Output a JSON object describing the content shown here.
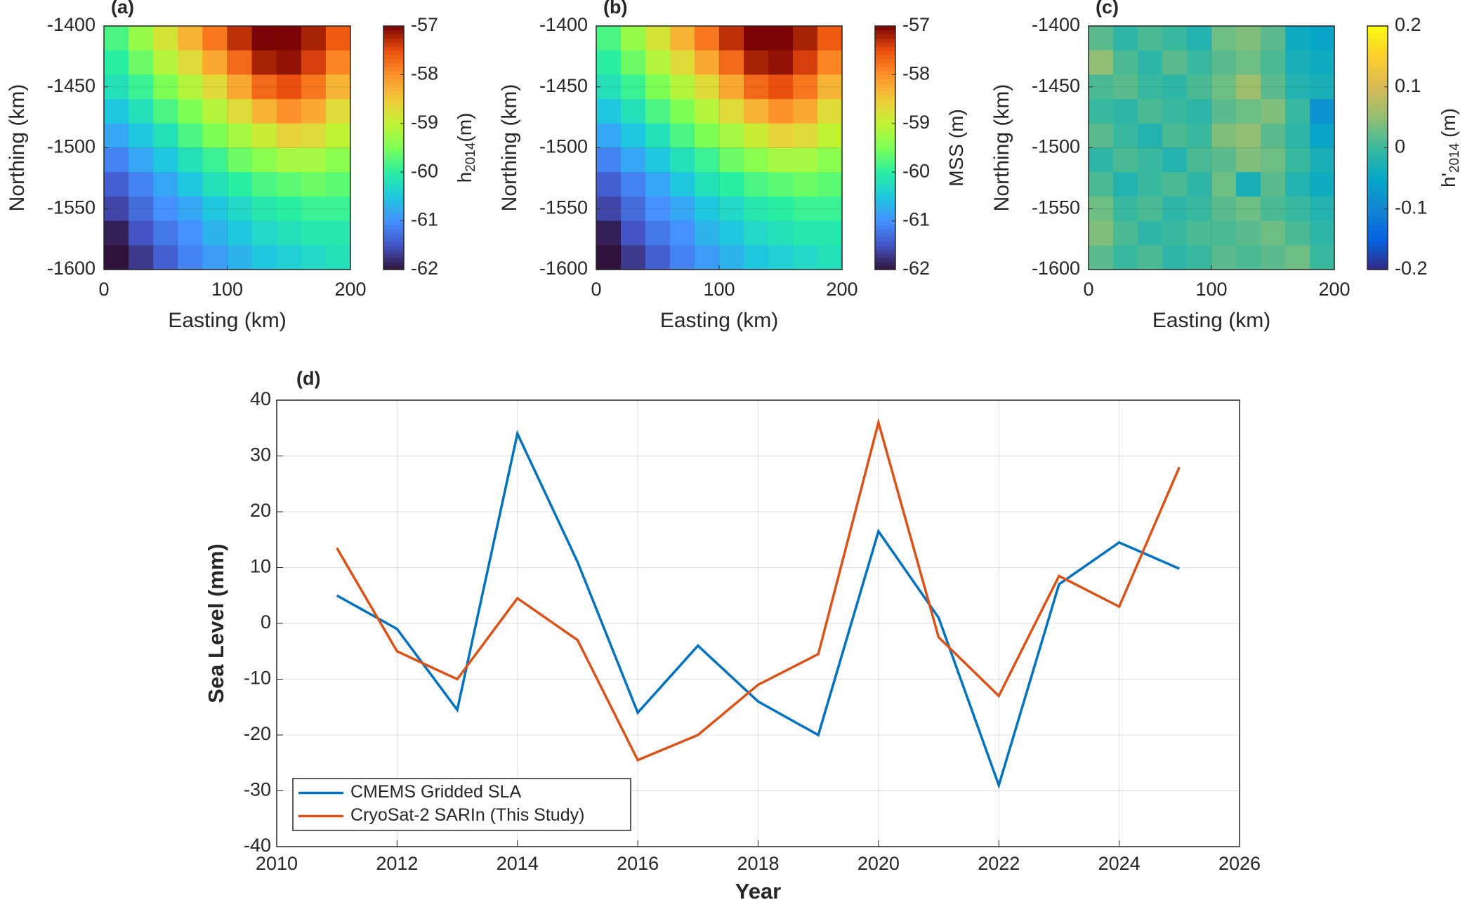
{
  "chart_data": [
    {
      "type": "heatmap",
      "label": "(a)",
      "xlabel": "Easting (km)",
      "ylabel": "Northing (km)",
      "xlim": [
        0,
        200
      ],
      "ylim": [
        -1600,
        -1400
      ],
      "xticks": [
        0,
        100,
        200
      ],
      "yticks": [
        -1600,
        -1550,
        -1500,
        -1450,
        -1400
      ],
      "grid": true,
      "colormap": "turbo",
      "clim": [
        -62,
        -57
      ],
      "cticks": [
        -62,
        -61,
        -60,
        -59,
        -58,
        -57
      ],
      "colorbar_label_parts": [
        "h",
        "2014",
        "(m)"
      ],
      "values": [
        [
          -59.8,
          -59.3,
          -58.8,
          -58.3,
          -57.8,
          -57.3,
          -57.0,
          -57.0,
          -57.2,
          -57.6
        ],
        [
          -60.0,
          -59.6,
          -59.1,
          -58.7,
          -58.2,
          -57.7,
          -57.2,
          -57.1,
          -57.4,
          -57.9
        ],
        [
          -60.2,
          -59.9,
          -59.5,
          -59.1,
          -58.7,
          -58.2,
          -57.7,
          -57.5,
          -57.8,
          -58.3
        ],
        [
          -60.5,
          -60.2,
          -59.8,
          -59.5,
          -59.1,
          -58.7,
          -58.3,
          -58.0,
          -58.2,
          -58.7
        ],
        [
          -60.8,
          -60.5,
          -60.2,
          -59.8,
          -59.5,
          -59.2,
          -58.9,
          -58.6,
          -58.7,
          -59.0
        ],
        [
          -61.1,
          -60.8,
          -60.5,
          -60.2,
          -59.9,
          -59.6,
          -59.4,
          -59.2,
          -59.2,
          -59.4
        ],
        [
          -61.4,
          -61.1,
          -60.8,
          -60.5,
          -60.2,
          -60.0,
          -59.8,
          -59.7,
          -59.6,
          -59.7
        ],
        [
          -61.6,
          -61.3,
          -61.0,
          -60.8,
          -60.5,
          -60.3,
          -60.1,
          -60.0,
          -59.9,
          -59.9
        ],
        [
          -61.9,
          -61.5,
          -61.2,
          -61.0,
          -60.7,
          -60.5,
          -60.3,
          -60.2,
          -60.1,
          -60.1
        ],
        [
          -62.0,
          -61.7,
          -61.4,
          -61.1,
          -60.9,
          -60.7,
          -60.5,
          -60.4,
          -60.3,
          -60.2
        ]
      ]
    },
    {
      "type": "heatmap",
      "label": "(b)",
      "xlabel": "Easting (km)",
      "ylabel": "Northing (km)",
      "xlim": [
        0,
        200
      ],
      "ylim": [
        -1600,
        -1400
      ],
      "xticks": [
        0,
        100,
        200
      ],
      "yticks": [
        -1600,
        -1550,
        -1500,
        -1450,
        -1400
      ],
      "grid": true,
      "colormap": "turbo",
      "clim": [
        -62,
        -57
      ],
      "cticks": [
        -62,
        -61,
        -60,
        -59,
        -58,
        -57
      ],
      "colorbar_label_parts": [
        "MSS (m)"
      ],
      "values": [
        [
          -59.8,
          -59.3,
          -58.8,
          -58.3,
          -57.8,
          -57.3,
          -57.0,
          -57.0,
          -57.2,
          -57.6
        ],
        [
          -60.0,
          -59.6,
          -59.1,
          -58.7,
          -58.2,
          -57.7,
          -57.2,
          -57.1,
          -57.4,
          -57.9
        ],
        [
          -60.2,
          -59.9,
          -59.5,
          -59.1,
          -58.7,
          -58.2,
          -57.7,
          -57.5,
          -57.8,
          -58.3
        ],
        [
          -60.5,
          -60.2,
          -59.8,
          -59.5,
          -59.1,
          -58.7,
          -58.3,
          -58.0,
          -58.2,
          -58.7
        ],
        [
          -60.8,
          -60.5,
          -60.2,
          -59.8,
          -59.5,
          -59.2,
          -58.9,
          -58.6,
          -58.7,
          -59.0
        ],
        [
          -61.1,
          -60.8,
          -60.5,
          -60.2,
          -59.9,
          -59.6,
          -59.4,
          -59.2,
          -59.2,
          -59.4
        ],
        [
          -61.4,
          -61.1,
          -60.8,
          -60.5,
          -60.2,
          -60.0,
          -59.8,
          -59.7,
          -59.6,
          -59.7
        ],
        [
          -61.6,
          -61.3,
          -61.0,
          -60.8,
          -60.5,
          -60.3,
          -60.1,
          -60.0,
          -59.9,
          -59.9
        ],
        [
          -61.9,
          -61.5,
          -61.2,
          -61.0,
          -60.7,
          -60.5,
          -60.3,
          -60.2,
          -60.1,
          -60.1
        ],
        [
          -62.0,
          -61.7,
          -61.4,
          -61.1,
          -60.9,
          -60.7,
          -60.5,
          -60.4,
          -60.3,
          -60.2
        ]
      ]
    },
    {
      "type": "heatmap",
      "label": "(c)",
      "xlabel": "Easting (km)",
      "ylabel": "Northing (km)",
      "xlim": [
        0,
        200
      ],
      "ylim": [
        -1600,
        -1400
      ],
      "xticks": [
        0,
        100,
        200
      ],
      "yticks": [
        -1600,
        -1550,
        -1500,
        -1450,
        -1400
      ],
      "grid": true,
      "colormap": "parula",
      "clim": [
        -0.2,
        0.2
      ],
      "cticks": [
        -0.2,
        -0.1,
        0,
        0.1,
        0.2
      ],
      "colorbar_label_parts": [
        "h'",
        "2014",
        " (m)"
      ],
      "values": [
        [
          0.02,
          -0.01,
          0.01,
          0.0,
          -0.02,
          0.03,
          0.04,
          0.02,
          -0.04,
          -0.05
        ],
        [
          0.05,
          0.01,
          -0.01,
          0.02,
          0.0,
          0.02,
          0.03,
          0.01,
          -0.03,
          -0.04
        ],
        [
          0.01,
          0.02,
          0.0,
          -0.01,
          0.01,
          0.03,
          0.06,
          0.02,
          -0.02,
          -0.03
        ],
        [
          0.0,
          -0.01,
          0.01,
          0.0,
          -0.01,
          0.02,
          0.03,
          0.04,
          0.0,
          -0.08
        ],
        [
          0.02,
          0.0,
          -0.02,
          0.01,
          0.0,
          0.04,
          0.05,
          0.02,
          -0.01,
          -0.05
        ],
        [
          -0.01,
          0.01,
          0.0,
          -0.02,
          0.01,
          0.02,
          0.04,
          0.03,
          0.0,
          -0.03
        ],
        [
          0.01,
          -0.02,
          0.0,
          0.01,
          -0.01,
          0.03,
          -0.03,
          0.02,
          -0.02,
          -0.04
        ],
        [
          0.03,
          0.0,
          0.01,
          -0.01,
          0.0,
          0.02,
          0.03,
          0.01,
          0.0,
          -0.02
        ],
        [
          0.04,
          0.01,
          -0.01,
          0.0,
          0.01,
          0.01,
          0.02,
          0.03,
          0.01,
          -0.01
        ],
        [
          0.02,
          0.0,
          0.01,
          -0.01,
          0.0,
          0.02,
          0.01,
          0.02,
          0.03,
          0.0
        ]
      ]
    },
    {
      "type": "line",
      "label": "(d)",
      "xlabel": "Year",
      "ylabel": "Sea Level (mm)",
      "x": [
        2011,
        2012,
        2013,
        2014,
        2015,
        2016,
        2017,
        2018,
        2019,
        2020,
        2021,
        2022,
        2023,
        2024,
        2025
      ],
      "xlim": [
        2010,
        2026
      ],
      "xticks": [
        2010,
        2012,
        2014,
        2016,
        2018,
        2020,
        2022,
        2024,
        2026
      ],
      "ylim": [
        -40,
        40
      ],
      "yticks": [
        -40,
        -30,
        -20,
        -10,
        0,
        10,
        20,
        30,
        40
      ],
      "grid": true,
      "legend": "lower left",
      "series": [
        {
          "name": "CMEMS Gridded SLA",
          "color": "#0072bd",
          "values": [
            5,
            -1,
            -15.5,
            34,
            11,
            -16,
            -4,
            -14,
            -20,
            16.5,
            1,
            -29,
            7,
            14.5,
            9.8
          ]
        },
        {
          "name": "CryoSat-2 SARIn (This Study)",
          "color": "#d95319",
          "values": [
            13.5,
            -5,
            -10,
            4.5,
            -3,
            -24.5,
            -20,
            -11,
            -5.5,
            36,
            -2.5,
            -13,
            8.5,
            3,
            28
          ]
        }
      ]
    }
  ]
}
